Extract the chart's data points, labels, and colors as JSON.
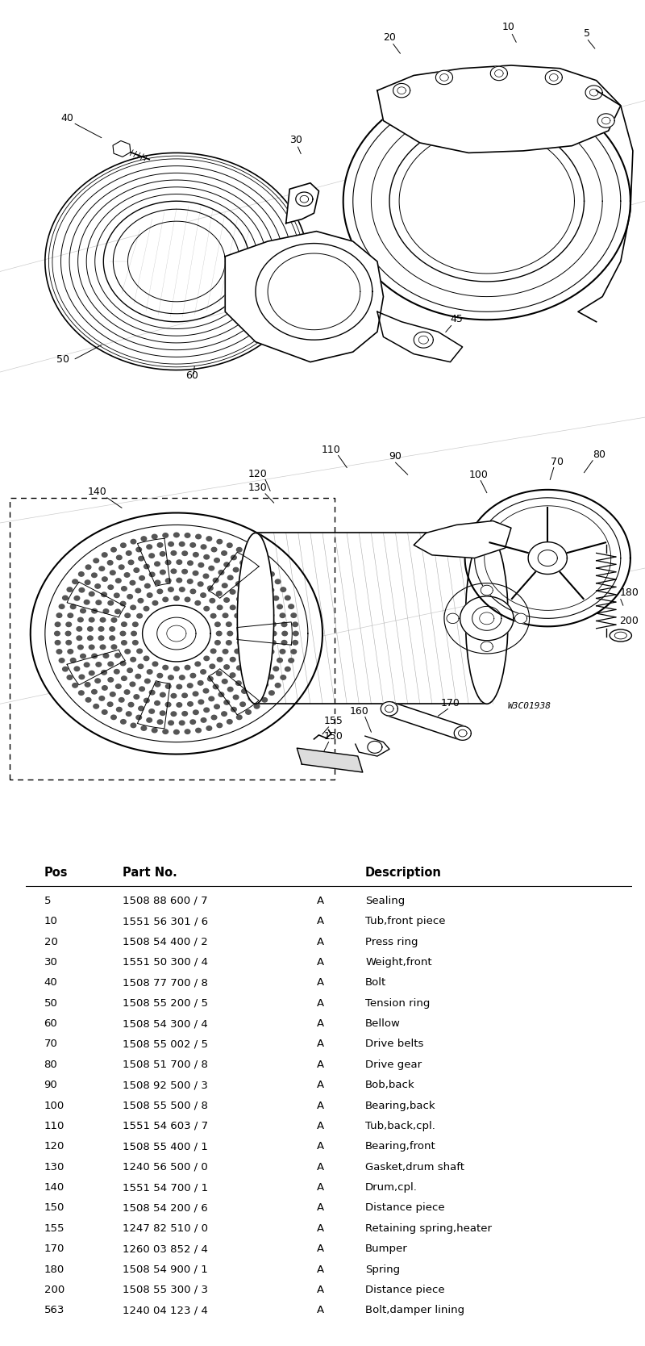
{
  "background_color": "#f5f5f0",
  "watermark": "W3C01938",
  "table_rows": [
    [
      "5",
      "1508 88 600 / 7",
      "A",
      "Sealing"
    ],
    [
      "10",
      "1551 56 301 / 6",
      "A",
      "Tub,front piece"
    ],
    [
      "20",
      "1508 54 400 / 2",
      "A",
      "Press ring"
    ],
    [
      "30",
      "1551 50 300 / 4",
      "A",
      "Weight,front"
    ],
    [
      "40",
      "1508 77 700 / 8",
      "A",
      "Bolt"
    ],
    [
      "50",
      "1508 55 200 / 5",
      "A",
      "Tension ring"
    ],
    [
      "60",
      "1508 54 300 / 4",
      "A",
      "Bellow"
    ],
    [
      "70",
      "1508 55 002 / 5",
      "A",
      "Drive belts"
    ],
    [
      "80",
      "1508 51 700 / 8",
      "A",
      "Drive gear"
    ],
    [
      "90",
      "1508 92 500 / 3",
      "A",
      "Bob,back"
    ],
    [
      "100",
      "1508 55 500 / 8",
      "A",
      "Bearing,back"
    ],
    [
      "110",
      "1551 54 603 / 7",
      "A",
      "Tub,back,cpl."
    ],
    [
      "120",
      "1508 55 400 / 1",
      "A",
      "Bearing,front"
    ],
    [
      "130",
      "1240 56 500 / 0",
      "A",
      "Gasket,drum shaft"
    ],
    [
      "140",
      "1551 54 700 / 1",
      "A",
      "Drum,cpl."
    ],
    [
      "150",
      "1508 54 200 / 6",
      "A",
      "Distance piece"
    ],
    [
      "155",
      "1247 82 510 / 0",
      "A",
      "Retaining spring,heater"
    ],
    [
      "170",
      "1260 03 852 / 4",
      "A",
      "Bumper"
    ],
    [
      "180",
      "1508 54 900 / 1",
      "A",
      "Spring"
    ],
    [
      "200",
      "1508 55 300 / 3",
      "A",
      "Distance piece"
    ],
    [
      "563",
      "1240 04 123 / 4",
      "A",
      "Bolt,damper lining"
    ]
  ]
}
